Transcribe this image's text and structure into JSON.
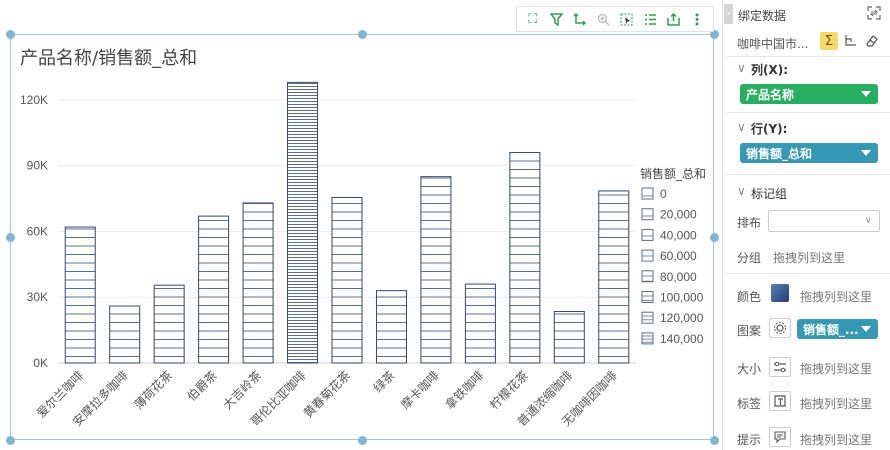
{
  "toolbar": {
    "icons": [
      "fullscreen-icon",
      "filter-icon",
      "swap-axes-icon",
      "zoom-icon",
      "select-icon",
      "list-icon",
      "export-icon",
      "more-icon"
    ]
  },
  "panel": {
    "title": "绑定数据",
    "dataset": "咖啡中国市...",
    "columns_label": "列(X):",
    "columns_pill": "产品名称",
    "rows_label": "行(Y):",
    "rows_pill": "销售额_总和",
    "marks_label": "标记组",
    "layout_label": "排布",
    "group_label": "分组",
    "group_drop": "拖拽列到这里",
    "color_label": "颜色",
    "color_drop": "拖拽列到这里",
    "pattern_label": "图案",
    "pattern_pill": "销售额_...",
    "size_label": "大小",
    "size_drop": "拖拽列到这里",
    "tag_label": "标签",
    "tag_drop": "拖拽列到这里",
    "tip_label": "提示",
    "tip_drop": "拖拽列到这里",
    "colors": {
      "green": "#27ae60",
      "blue": "#3598b4",
      "accent": "#f5b301"
    }
  },
  "chart_data": {
    "type": "bar",
    "title": "产品名称/销售额_总和",
    "categories": [
      "爱尔兰咖啡",
      "安摩拉多咖啡",
      "薄荷花茶",
      "伯爵茶",
      "大吉岭茶",
      "哥伦比亚咖啡",
      "黄春菊花茶",
      "绿茶",
      "摩卡咖啡",
      "拿铁咖啡",
      "柠檬花茶",
      "普通浓缩咖啡",
      "无咖啡因咖啡"
    ],
    "values": [
      62000,
      26000,
      35500,
      67000,
      73000,
      128000,
      75500,
      33000,
      85000,
      36000,
      96000,
      23500,
      78500
    ],
    "yticks": [
      "0K",
      "30K",
      "60K",
      "90K",
      "120K"
    ],
    "ylim": [
      0,
      130000
    ],
    "legend_title": "销售额_总和",
    "legend_items": [
      "0",
      "20,000",
      "40,000",
      "60,000",
      "80,000",
      "100,000",
      "120,000",
      "140,000"
    ],
    "bar_stroke": "#33466e"
  }
}
